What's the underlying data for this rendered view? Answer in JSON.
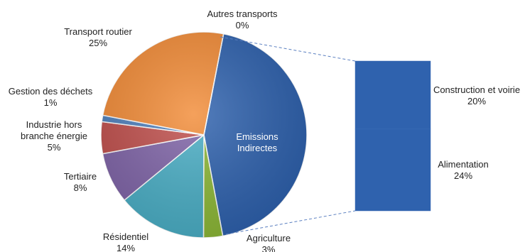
{
  "chart_data": {
    "type": "pie",
    "subtype": "pie-of-bar",
    "slices": [
      {
        "label": "Emissions Indirectes",
        "value": 44,
        "color": "#2F62AE",
        "printed_value": ""
      },
      {
        "label": "Agriculture",
        "value": 3,
        "color": "#8DB838",
        "printed_value": "3%"
      },
      {
        "label": "Résidentiel",
        "value": 14,
        "color": "#4BAFC6",
        "printed_value": "14%"
      },
      {
        "label": "Tertiaire",
        "value": 8,
        "color": "#8065A8",
        "printed_value": "8%"
      },
      {
        "label": "Industrie hors branche énergie",
        "value": 5,
        "color": "#C0504D",
        "printed_value": "5%"
      },
      {
        "label": "Gestion des déchets",
        "value": 1,
        "color": "#4F81BD",
        "printed_value": "1%"
      },
      {
        "label": "Transport routier",
        "value": 25,
        "color": "#F28C38",
        "printed_value": "25%"
      },
      {
        "label": "Autres transports",
        "value": 0,
        "color": "#999999",
        "printed_value": "0%"
      }
    ],
    "breakdown": {
      "parent": "Emissions Indirectes",
      "segments": [
        {
          "label": "Construction et voirie",
          "value": 20,
          "printed_value": "20%",
          "color": "#2F62AE"
        },
        {
          "label": "Alimentation",
          "value": 24,
          "printed_value": "24%",
          "color": "#2F62AE"
        }
      ]
    },
    "labels": {
      "autres_transports": {
        "line1": "Autres transports",
        "line2": "0%"
      },
      "transport_routier": {
        "line1": "Transport routier",
        "line2": "25%"
      },
      "gestion_dechets": {
        "line1": "Gestion des déchets",
        "line2": "1%"
      },
      "industrie": {
        "line1": "Industrie hors",
        "line2": "branche énergie",
        "line3": "5%"
      },
      "tertiaire": {
        "line1": "Tertiaire",
        "line2": "8%"
      },
      "residentiel": {
        "line1": "Résidentiel",
        "line2": "14%"
      },
      "agriculture": {
        "line1": "Agriculture",
        "line2": "3%"
      },
      "emissions": {
        "line1": "Emissions",
        "line2": "Indirectes"
      },
      "construction": {
        "line1": "Construction et voirie",
        "line2": "20%"
      },
      "alimentation": {
        "line1": "Alimentation",
        "line2": "24%"
      }
    }
  }
}
